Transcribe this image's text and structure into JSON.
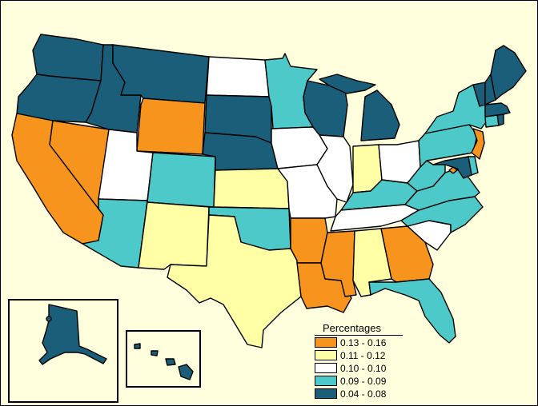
{
  "legend": {
    "title": "Percentages",
    "classes": [
      {
        "label": "0.13 - 0.16",
        "color": "#f7941d"
      },
      {
        "label": "0.11 - 0.12",
        "color": "#ffffa6"
      },
      {
        "label": "0.10 - 0.10",
        "color": "#ffffff"
      },
      {
        "label": "0.09 - 0.09",
        "color": "#4ec9c9"
      },
      {
        "label": "0.04 - 0.08",
        "color": "#1a5e7a"
      }
    ]
  },
  "states": [
    {
      "name": "WA",
      "class": 4
    },
    {
      "name": "OR",
      "class": 4
    },
    {
      "name": "CA",
      "class": 0
    },
    {
      "name": "NV",
      "class": 0
    },
    {
      "name": "ID",
      "class": 4
    },
    {
      "name": "MT",
      "class": 4
    },
    {
      "name": "WY",
      "class": 0
    },
    {
      "name": "UT",
      "class": 2
    },
    {
      "name": "AZ",
      "class": 3
    },
    {
      "name": "CO",
      "class": 3
    },
    {
      "name": "NM",
      "class": 1
    },
    {
      "name": "ND",
      "class": 2
    },
    {
      "name": "SD",
      "class": 4
    },
    {
      "name": "NE",
      "class": 4
    },
    {
      "name": "KS",
      "class": 1
    },
    {
      "name": "OK",
      "class": 3
    },
    {
      "name": "TX",
      "class": 1
    },
    {
      "name": "MN",
      "class": 3
    },
    {
      "name": "IA",
      "class": 2
    },
    {
      "name": "MO",
      "class": 2
    },
    {
      "name": "AR",
      "class": 0
    },
    {
      "name": "LA",
      "class": 0
    },
    {
      "name": "WI",
      "class": 4
    },
    {
      "name": "IL",
      "class": 2
    },
    {
      "name": "MI",
      "class": 4
    },
    {
      "name": "IN",
      "class": 1
    },
    {
      "name": "OH",
      "class": 2
    },
    {
      "name": "KY",
      "class": 3
    },
    {
      "name": "TN",
      "class": 2
    },
    {
      "name": "MS",
      "class": 0
    },
    {
      "name": "AL",
      "class": 1
    },
    {
      "name": "GA",
      "class": 0
    },
    {
      "name": "FL",
      "class": 3
    },
    {
      "name": "SC",
      "class": 2
    },
    {
      "name": "NC",
      "class": 3
    },
    {
      "name": "VA",
      "class": 3
    },
    {
      "name": "WV",
      "class": 3
    },
    {
      "name": "PA",
      "class": 3
    },
    {
      "name": "NY",
      "class": 3
    },
    {
      "name": "NJ",
      "class": 0
    },
    {
      "name": "DE",
      "class": 3
    },
    {
      "name": "MD",
      "class": 4
    },
    {
      "name": "DC",
      "class": 0
    },
    {
      "name": "CT",
      "class": 3
    },
    {
      "name": "RI",
      "class": 4
    },
    {
      "name": "MA",
      "class": 4
    },
    {
      "name": "VT",
      "class": 4
    },
    {
      "name": "NH",
      "class": 4
    },
    {
      "name": "ME",
      "class": 4
    },
    {
      "name": "AK",
      "class": 4
    },
    {
      "name": "HI",
      "class": 4
    }
  ]
}
